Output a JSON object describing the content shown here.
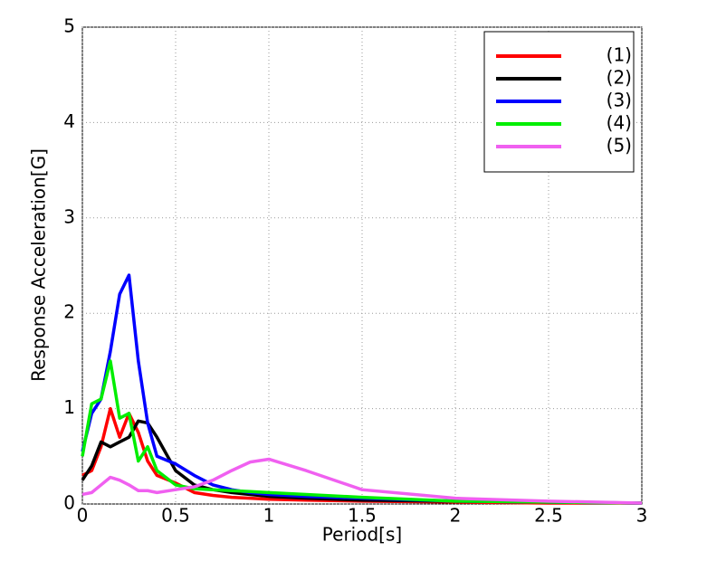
{
  "chart_data": {
    "type": "line",
    "x_label": "Period[s]",
    "y_label": "Response Acceleration[G]",
    "x": [
      0,
      0.05,
      0.1,
      0.15,
      0.2,
      0.25,
      0.3,
      0.35,
      0.4,
      0.5,
      0.6,
      0.7,
      0.8,
      0.9,
      1.0,
      1.2,
      1.5,
      2,
      2.5,
      3
    ],
    "series": [
      {
        "name": "(1)",
        "color": "#ff0000",
        "values": [
          0.3,
          0.35,
          0.6,
          1.0,
          0.7,
          0.95,
          0.75,
          0.45,
          0.3,
          0.22,
          0.12,
          0.09,
          0.07,
          0.06,
          0.05,
          0.04,
          0.03,
          0.02,
          0.01,
          0.01
        ]
      },
      {
        "name": "(2)",
        "color": "#000000",
        "values": [
          0.25,
          0.4,
          0.65,
          0.6,
          0.65,
          0.7,
          0.87,
          0.85,
          0.7,
          0.35,
          0.2,
          0.15,
          0.12,
          0.1,
          0.08,
          0.06,
          0.04,
          0.03,
          0.02,
          0.01
        ]
      },
      {
        "name": "(3)",
        "color": "#0000ff",
        "values": [
          0.55,
          0.95,
          1.1,
          1.6,
          2.2,
          2.4,
          1.5,
          0.85,
          0.5,
          0.42,
          0.3,
          0.2,
          0.15,
          0.12,
          0.1,
          0.08,
          0.06,
          0.03,
          0.02,
          0.01
        ]
      },
      {
        "name": "(4)",
        "color": "#00ee00",
        "values": [
          0.5,
          1.05,
          1.1,
          1.5,
          0.9,
          0.95,
          0.45,
          0.6,
          0.35,
          0.2,
          0.16,
          0.15,
          0.14,
          0.13,
          0.12,
          0.1,
          0.07,
          0.03,
          0.02,
          0.01
        ]
      },
      {
        "name": "(5)",
        "color": "#f060f0",
        "values": [
          0.1,
          0.12,
          0.2,
          0.28,
          0.25,
          0.2,
          0.14,
          0.14,
          0.12,
          0.15,
          0.18,
          0.25,
          0.35,
          0.44,
          0.47,
          0.35,
          0.15,
          0.06,
          0.03,
          0.01
        ]
      }
    ],
    "xlim": [
      0,
      3
    ],
    "xticks": [
      0,
      0.5,
      1,
      1.5,
      2,
      2.5,
      3
    ],
    "ylim": [
      0,
      5
    ],
    "yticks": [
      0,
      1,
      2,
      3,
      4,
      5
    ],
    "grid": true,
    "legend": "upper right"
  }
}
